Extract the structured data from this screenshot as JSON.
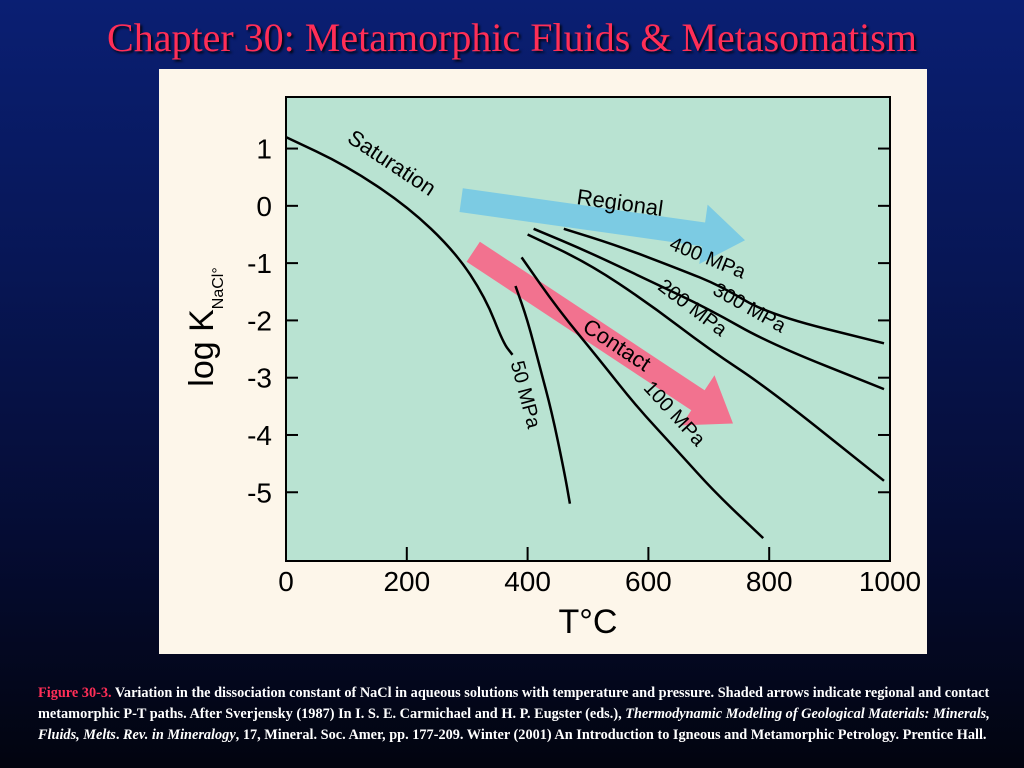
{
  "slide": {
    "title": "Chapter 30: Metamorphic Fluids & Metasomatism"
  },
  "chart_data": {
    "type": "line",
    "xlabel": "T°C",
    "ylabel_main": "log K",
    "ylabel_sub": "NaCl°",
    "xlim": [
      0,
      1000
    ],
    "ylim": [
      -6.2,
      1.9
    ],
    "x_ticks": [
      0,
      200,
      400,
      600,
      800,
      1000
    ],
    "y_ticks": [
      1,
      0,
      -1,
      -2,
      -3,
      -4,
      -5
    ],
    "grid": false,
    "plot_background": "#b9e3d2",
    "series": [
      {
        "name": "Saturation",
        "x": [
          0,
          100,
          200,
          280,
          330,
          360,
          375
        ],
        "y": [
          1.2,
          0.7,
          0.0,
          -0.8,
          -1.6,
          -2.4,
          -2.6
        ]
      },
      {
        "name": "50 MPa",
        "x": [
          380,
          400,
          420,
          440,
          460,
          470
        ],
        "y": [
          -1.4,
          -2.0,
          -2.8,
          -3.6,
          -4.6,
          -5.2
        ]
      },
      {
        "name": "100 MPa",
        "x": [
          390,
          450,
          520,
          580,
          650,
          710,
          790
        ],
        "y": [
          -0.9,
          -1.8,
          -2.7,
          -3.5,
          -4.3,
          -5.0,
          -5.8
        ]
      },
      {
        "name": "200 MPa",
        "x": [
          400,
          500,
          600,
          700,
          800,
          990
        ],
        "y": [
          -0.5,
          -1.0,
          -1.7,
          -2.5,
          -3.2,
          -4.8
        ]
      },
      {
        "name": "300 MPa",
        "x": [
          410,
          500,
          600,
          700,
          800,
          990
        ],
        "y": [
          -0.4,
          -0.8,
          -1.3,
          -1.8,
          -2.4,
          -3.2
        ]
      },
      {
        "name": "400 MPa",
        "x": [
          460,
          550,
          650,
          720,
          800,
          990
        ],
        "y": [
          -0.4,
          -0.7,
          -1.1,
          -1.4,
          -1.9,
          -2.4
        ]
      }
    ],
    "arrows": [
      {
        "label": "Regional",
        "color": "#7ccbe3",
        "from": [
          290,
          0.1
        ],
        "to": [
          760,
          -0.6
        ]
      },
      {
        "label": "Contact",
        "color": "#f2728f",
        "from": [
          310,
          -0.8
        ],
        "to": [
          740,
          -3.8
        ]
      }
    ]
  },
  "caption": {
    "label": "Figure 30-3.",
    "part1": " Variation in the dissociation constant of NaCl in aqueous solutions with temperature and pressure. Shaded arrows indicate regional and contact metamorphic P-T paths. After Sverjensky (1987) In I. S. E. Carmichael and H. P. Eugster (eds.), ",
    "italic1": "Thermodynamic Modeling of Geological Materials: Minerals, Fluids, Melts",
    "part2": ". ",
    "italic2": "Rev. in Mineralogy",
    "part3": ", 17, Mineral. Soc. Amer, pp. 177-209. Winter (2001) An Introduction to Igneous and Metamorphic Petrology. Prentice Hall."
  }
}
